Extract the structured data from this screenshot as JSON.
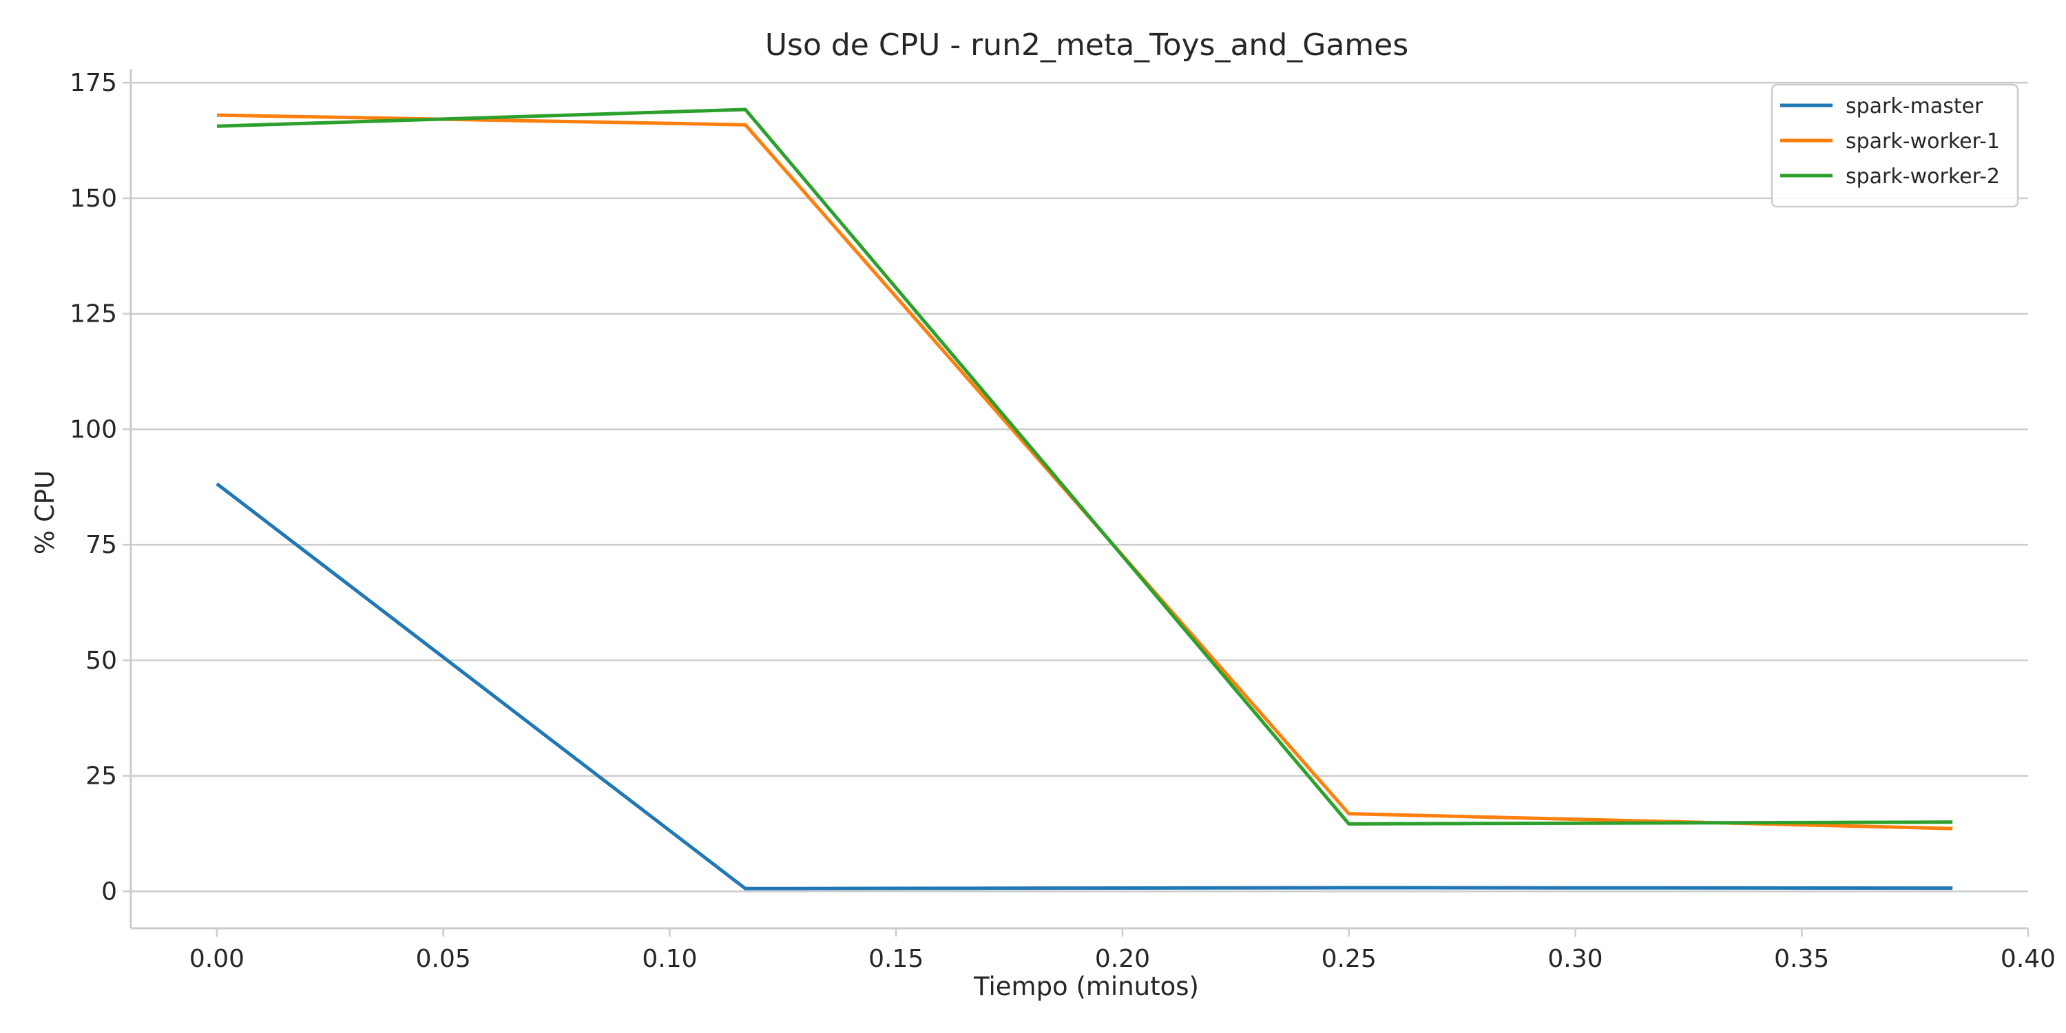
{
  "chart_data": {
    "type": "line",
    "title": "Uso de CPU - run2_meta_Toys_and_Games",
    "xlabel": "Tiempo (minutos)",
    "ylabel": "% CPU",
    "xlim": [
      -0.019,
      0.4
    ],
    "ylim": [
      -8,
      178
    ],
    "xticks": [
      0.0,
      0.05,
      0.1,
      0.15,
      0.2,
      0.25,
      0.3,
      0.35,
      0.4
    ],
    "xtick_labels": [
      "0.00",
      "0.05",
      "0.10",
      "0.15",
      "0.20",
      "0.25",
      "0.30",
      "0.35",
      "0.40"
    ],
    "yticks": [
      0,
      25,
      50,
      75,
      100,
      125,
      150,
      175
    ],
    "ytick_labels": [
      "0",
      "25",
      "50",
      "75",
      "100",
      "125",
      "150",
      "175"
    ],
    "grid": true,
    "legend_position": "top-right",
    "x": [
      0.0,
      0.1167,
      0.25,
      0.3833
    ],
    "series": [
      {
        "name": "spark-master",
        "color": "#1f77b4",
        "values": [
          88.2,
          0.6,
          0.8,
          0.7
        ]
      },
      {
        "name": "spark-worker-1",
        "color": "#ff7f0e",
        "values": [
          168.0,
          165.9,
          16.8,
          13.6
        ]
      },
      {
        "name": "spark-worker-2",
        "color": "#2ca02c",
        "values": [
          165.6,
          169.2,
          14.6,
          15.0
        ]
      }
    ]
  }
}
